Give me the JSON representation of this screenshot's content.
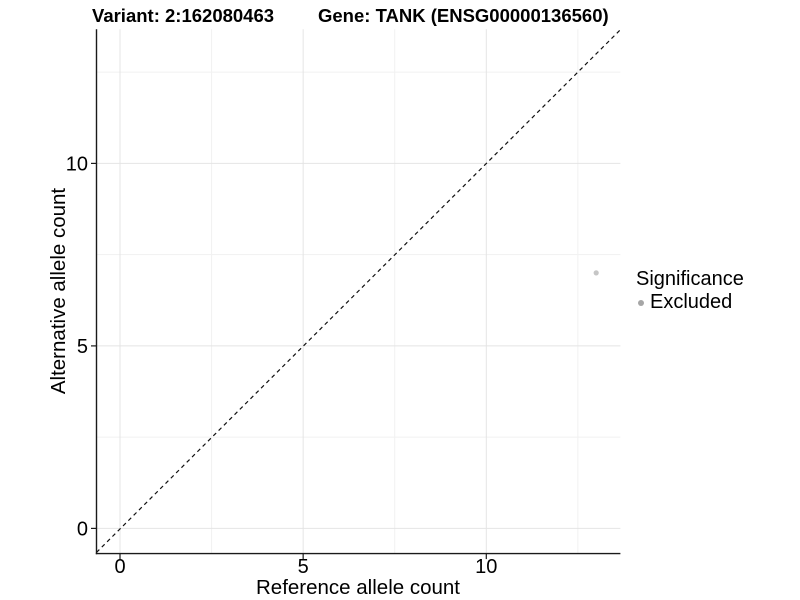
{
  "header": {
    "variant_title": "Variant: 2:162080463",
    "gene_title": "Gene: TANK (ENSG00000136560)"
  },
  "legend": {
    "title": "Significance",
    "items": [
      {
        "label": "Excluded",
        "color": "#a6a6a6"
      }
    ]
  },
  "colors": {
    "point": "#c6c6c6",
    "grid_major": "#e4e4e4",
    "grid_minor": "#f1f1f1",
    "axis": "#1a1a1a",
    "reference_line": "#111111",
    "text": "#000000"
  },
  "chart_data": {
    "type": "scatter",
    "title": "Variant: 2:162080463 | Gene: TANK (ENSG00000136560)",
    "xlabel": "Reference allele count",
    "ylabel": "Alternative allele count",
    "x_ticks": [
      0,
      5,
      10
    ],
    "y_ticks": [
      0,
      5,
      10
    ],
    "x_minor_ticks": [
      2.5,
      7.5,
      12.5
    ],
    "y_minor_ticks": [
      2.5,
      7.5,
      12.5
    ],
    "xlim": [
      -0.65,
      13.68
    ],
    "ylim": [
      -0.7,
      13.68
    ],
    "grid": "on",
    "legend_position": "right-middle",
    "series": [
      {
        "name": "Excluded",
        "color": "#c6c6c6",
        "marker": "circle",
        "points": [
          [
            13,
            7
          ]
        ]
      }
    ],
    "reference_line": {
      "kind": "identity y=x",
      "style": "dashed",
      "color": "#111111"
    }
  }
}
